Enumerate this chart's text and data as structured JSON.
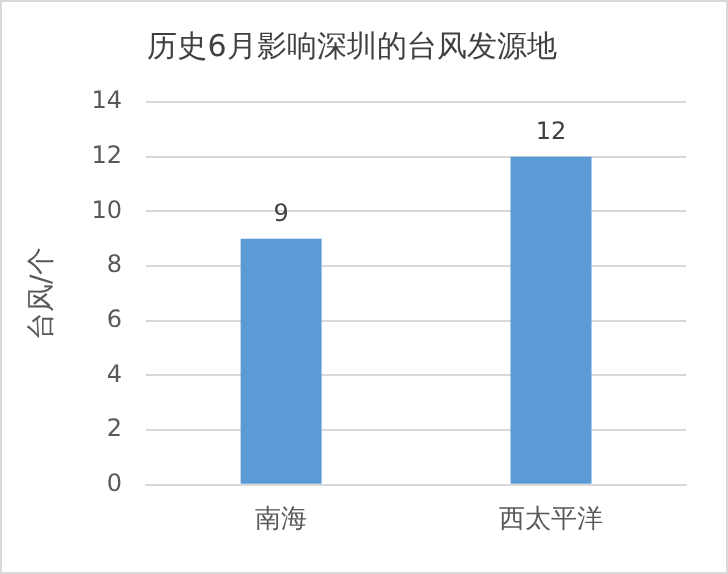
{
  "chart_data": {
    "type": "bar",
    "title": "历史6月影响深圳的台风发源地",
    "ylabel": "台风/个",
    "categories": [
      "南海",
      "西太平洋"
    ],
    "values": [
      9,
      12
    ],
    "color": "#5b9bd5",
    "ylim": [
      0,
      14
    ],
    "yticks": [
      0,
      2,
      4,
      6,
      8,
      10,
      12,
      14
    ],
    "grid": "y",
    "data_labels": true,
    "legend": false
  }
}
